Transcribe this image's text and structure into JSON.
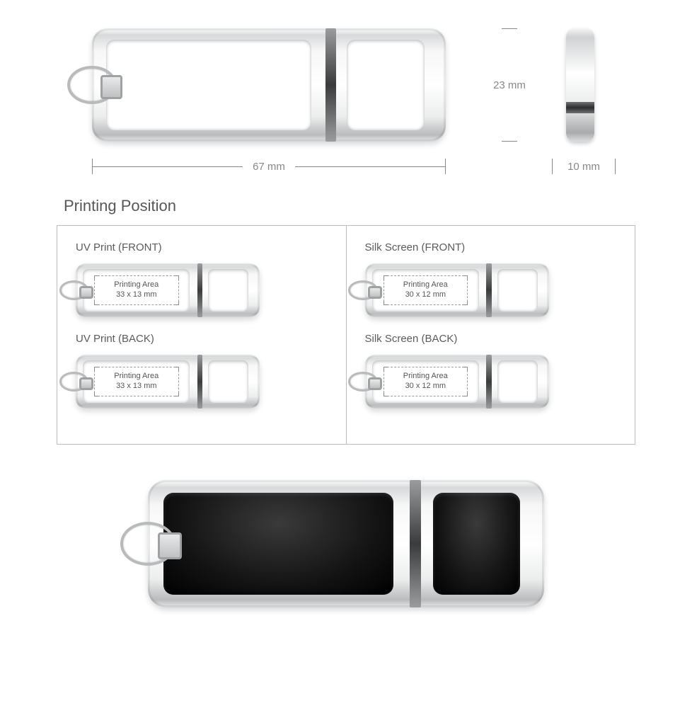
{
  "dimensions": {
    "width_label": "67 mm",
    "height_label": "23 mm",
    "depth_label": "10 mm"
  },
  "section_title": "Printing Position",
  "print_area_caption": "Printing Area",
  "panels": {
    "uv": {
      "front_label": "UV Print (FRONT)",
      "back_label": "UV Print (BACK)",
      "area_dims": "33 x 13 mm"
    },
    "silk": {
      "front_label": "Silk Screen (FRONT)",
      "back_label": "Silk Screen (BACK)",
      "area_dims": "30 x 12 mm"
    }
  },
  "colors": {
    "text": "#575757",
    "dim_line": "#888888",
    "panel_border": "#bcbcbc",
    "dash": "#9a9a9a",
    "chrome_light": "#f7f7f7",
    "chrome_dark": "#b9bbbc",
    "leather_black": "#141414"
  },
  "product": {
    "body_color_white": "#ffffff",
    "body_color_black": "#141414"
  }
}
